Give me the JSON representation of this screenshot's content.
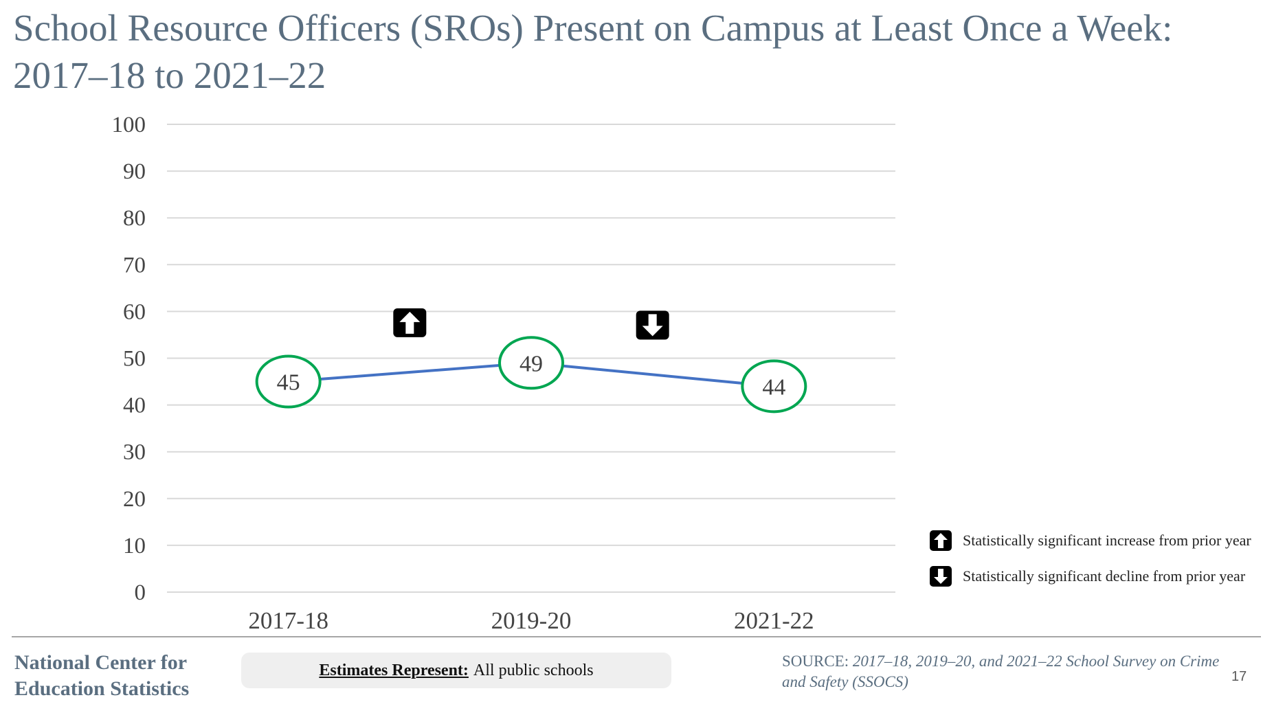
{
  "slide": {
    "title": "School Resource Officers (SROs) Present on Campus at Least Once a Week: 2017–18 to 2021–22",
    "page_number": "17"
  },
  "chart_data": {
    "type": "line",
    "title": "",
    "xlabel": "",
    "ylabel": "",
    "categories": [
      "2017-18",
      "2019-20",
      "2021-22"
    ],
    "series": [
      {
        "values": [
          45,
          49,
          44
        ],
        "color": "#4472c4"
      }
    ],
    "ylim": [
      0,
      100
    ],
    "yticks": [
      "0",
      "10",
      "20",
      "30",
      "40",
      "50",
      "60",
      "70",
      "80",
      "90",
      "100"
    ],
    "data_labels": [
      "45",
      "49",
      "44"
    ],
    "marker_color": "#00a651",
    "grid": true,
    "annotations": [
      {
        "between": [
          "2017-18",
          "2019-20"
        ],
        "icon": "up-arrow-icon",
        "meaning": "increase"
      },
      {
        "between": [
          "2019-20",
          "2021-22"
        ],
        "icon": "down-arrow-icon",
        "meaning": "decline"
      }
    ]
  },
  "legend": {
    "placement": "bottom-right",
    "items": [
      {
        "icon": "up-arrow-icon",
        "label": "Statistically significant increase from prior year"
      },
      {
        "icon": "down-arrow-icon",
        "label": "Statistically significant decline from prior year"
      }
    ]
  },
  "footer": {
    "org_line1": "National Center for",
    "org_line2": "Education Statistics",
    "estimates_label": "Estimates Represent:",
    "estimates_value": "All public schools",
    "source_label": "SOURCE:",
    "source_text": "2017–18, 2019–20, and 2021–22 School Survey on Crime and Safety (SSOCS)"
  }
}
